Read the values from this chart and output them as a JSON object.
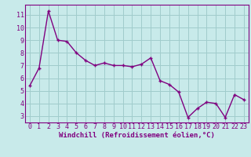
{
  "x": [
    0,
    1,
    2,
    3,
    4,
    5,
    6,
    7,
    8,
    9,
    10,
    11,
    12,
    13,
    14,
    15,
    16,
    17,
    18,
    19,
    20,
    21,
    22,
    23
  ],
  "y": [
    5.4,
    6.8,
    11.3,
    9.0,
    8.9,
    8.0,
    7.4,
    7.0,
    7.2,
    7.0,
    7.0,
    6.9,
    7.1,
    7.6,
    5.8,
    5.5,
    4.9,
    2.9,
    3.6,
    4.1,
    4.0,
    2.9,
    4.7,
    4.3
  ],
  "line_color": "#800080",
  "marker": "+",
  "marker_size": 3.5,
  "bg_color": "#c8eaea",
  "grid_color": "#a0cccc",
  "xlabel": "Windchill (Refroidissement éolien,°C)",
  "xlabel_color": "#800080",
  "tick_color": "#800080",
  "spine_color": "#800080",
  "ylim": [
    2.5,
    11.8
  ],
  "yticks": [
    3,
    4,
    5,
    6,
    7,
    8,
    9,
    10,
    11
  ],
  "xlim": [
    -0.5,
    23.5
  ],
  "xticks": [
    0,
    1,
    2,
    3,
    4,
    5,
    6,
    7,
    8,
    9,
    10,
    11,
    12,
    13,
    14,
    15,
    16,
    17,
    18,
    19,
    20,
    21,
    22,
    23
  ],
  "line_width": 1.0,
  "tick_fontsize": 6.0,
  "xlabel_fontsize": 6.5
}
